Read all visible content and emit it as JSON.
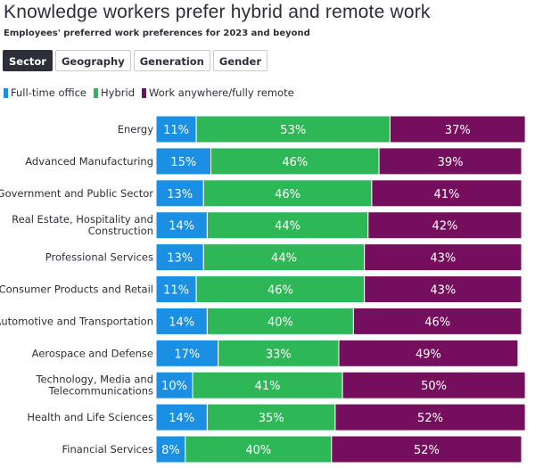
{
  "header": {
    "title": "Knowledge workers prefer hybrid and remote work",
    "subtitle": "Employees' preferred work preferences for 2023 and beyond"
  },
  "tabs": [
    {
      "label": "Sector",
      "active": true
    },
    {
      "label": "Geography",
      "active": false
    },
    {
      "label": "Generation",
      "active": false
    },
    {
      "label": "Gender",
      "active": false
    }
  ],
  "colors": {
    "full_time_office": "#1a8fe3",
    "hybrid": "#2db757",
    "remote": "#750e5c"
  },
  "chart_data": {
    "type": "bar",
    "orientation": "horizontal",
    "stacked": true,
    "categories": [
      "Energy",
      "Advanced Manufacturing",
      "Government and Public Sector",
      "Real Estate, Hospitality and Construction",
      "Professional Services",
      "Consumer Products and Retail",
      "Automotive and Transportation",
      "Aerospace and Defense",
      "Technology, Media and Telecommunications",
      "Health and Life Sciences",
      "Financial Services"
    ],
    "category_lines": [
      [
        "Energy"
      ],
      [
        "Advanced Manufacturing"
      ],
      [
        "Government and Public Sector"
      ],
      [
        "Real Estate, Hospitality and",
        "Construction"
      ],
      [
        "Professional Services"
      ],
      [
        "Consumer Products and Retail"
      ],
      [
        "Automotive and Transportation"
      ],
      [
        "Aerospace and Defense"
      ],
      [
        "Technology, Media and",
        "Telecommunications"
      ],
      [
        "Health and Life Sciences"
      ],
      [
        "Financial Services"
      ]
    ],
    "series": [
      {
        "name": "Full-time office",
        "values": [
          11,
          15,
          13,
          14,
          13,
          11,
          14,
          17,
          10,
          14,
          8
        ]
      },
      {
        "name": "Hybrid",
        "values": [
          53,
          46,
          46,
          44,
          44,
          46,
          40,
          33,
          41,
          35,
          40
        ]
      },
      {
        "name": "Work anywhere/fully remote",
        "values": [
          37,
          39,
          41,
          42,
          43,
          43,
          46,
          49,
          50,
          52,
          52
        ]
      }
    ],
    "value_suffix": "%",
    "xlim": [
      0,
      100
    ],
    "legend_position": "top-left",
    "grid": false
  }
}
